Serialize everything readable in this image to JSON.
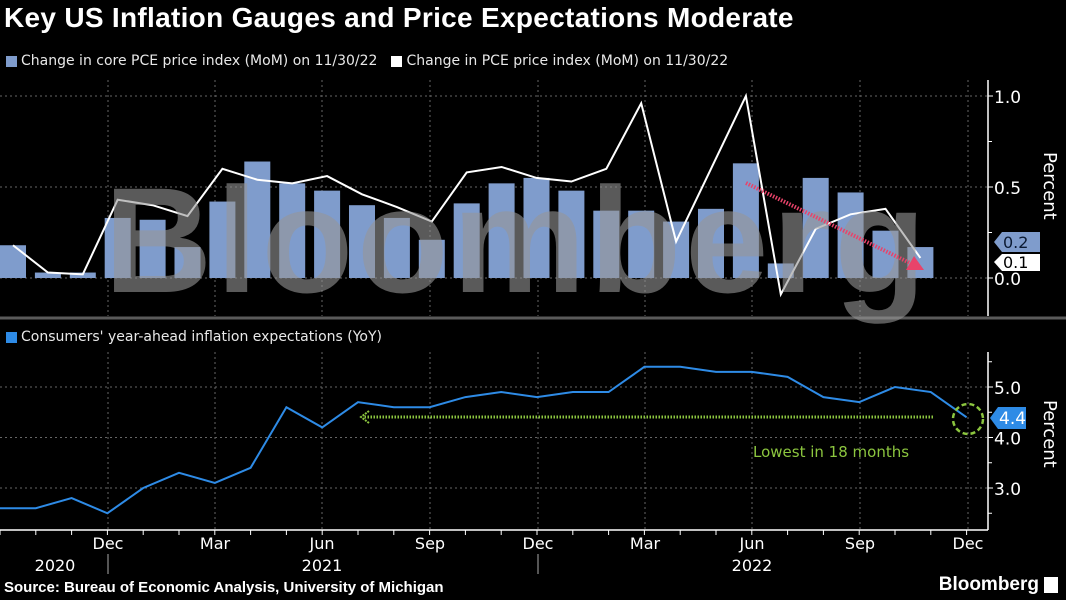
{
  "title": "Key US Inflation Gauges and Price Expectations Moderate",
  "source": "Source: Bureau of Economic Analysis, University of Michigan",
  "brand": "Bloomberg",
  "watermark": "Bloomberg",
  "colors": {
    "core_pce": "#7f9ccc",
    "pce": "#ffffff",
    "expectations": "#2e8be6",
    "annotation_green": "#8cc63f",
    "annotation_red": "#e8436a",
    "separator": "#5a5a5a"
  },
  "x_axis": {
    "month_labels": [
      "Dec",
      "Mar",
      "Jun",
      "Sep",
      "Dec",
      "Mar",
      "Jun",
      "Sep",
      "Dec"
    ],
    "year_labels": [
      "2020",
      "2021",
      "2022"
    ]
  },
  "chart_data": [
    {
      "type": "bar+line",
      "legend": [
        "Change in core PCE price index (MoM) on 11/30/22",
        "Change in PCE price index (MoM) on 11/30/22"
      ],
      "ylabel": "Percent",
      "yticks": [
        "1.0",
        "0.5",
        "0.0"
      ],
      "ylim": [
        -0.2,
        1.1
      ],
      "x": [
        "2020-09",
        "2020-10",
        "2020-11",
        "2020-12",
        "2021-01",
        "2021-02",
        "2021-03",
        "2021-04",
        "2021-05",
        "2021-06",
        "2021-07",
        "2021-08",
        "2021-09",
        "2021-10",
        "2021-11",
        "2021-12",
        "2022-01",
        "2022-02",
        "2022-03",
        "2022-04",
        "2022-05",
        "2022-06",
        "2022-07",
        "2022-08",
        "2022-09",
        "2022-10",
        "2022-11"
      ],
      "series": [
        {
          "name": "Change in core PCE price index (MoM) on 11/30/22",
          "kind": "bar",
          "values": [
            0.18,
            0.03,
            0.03,
            0.33,
            0.32,
            0.17,
            0.42,
            0.64,
            0.52,
            0.48,
            0.4,
            0.33,
            0.21,
            0.41,
            0.52,
            0.55,
            0.48,
            0.37,
            0.37,
            0.31,
            0.38,
            0.63,
            0.08,
            0.55,
            0.47,
            0.26,
            0.17
          ]
        },
        {
          "name": "Change in PCE price index (MoM) on 11/30/22",
          "kind": "line",
          "values": [
            0.18,
            0.03,
            0.02,
            0.43,
            0.4,
            0.34,
            0.6,
            0.54,
            0.52,
            0.56,
            0.46,
            0.39,
            0.31,
            0.58,
            0.61,
            0.55,
            0.53,
            0.6,
            0.96,
            0.2,
            0.6,
            1.0,
            -0.09,
            0.27,
            0.35,
            0.38,
            0.11
          ]
        }
      ],
      "end_labels": [
        "0.2",
        "0.1"
      ]
    },
    {
      "type": "line",
      "legend": [
        "Consumers' year-ahead inflation expectations (YoY)"
      ],
      "ylabel": "Percent",
      "yticks": [
        "5.0",
        "4.0",
        "3.0"
      ],
      "ylim": [
        2.2,
        5.7
      ],
      "x": [
        "2020-09",
        "2020-10",
        "2020-11",
        "2020-12",
        "2021-01",
        "2021-02",
        "2021-03",
        "2021-04",
        "2021-05",
        "2021-06",
        "2021-07",
        "2021-08",
        "2021-09",
        "2021-10",
        "2021-11",
        "2021-12",
        "2022-01",
        "2022-02",
        "2022-03",
        "2022-04",
        "2022-05",
        "2022-06",
        "2022-07",
        "2022-08",
        "2022-09",
        "2022-10",
        "2022-11",
        "2022-12"
      ],
      "series": [
        {
          "name": "Consumers' year-ahead inflation expectations (YoY)",
          "values": [
            2.6,
            2.6,
            2.8,
            2.5,
            3.0,
            3.3,
            3.1,
            3.4,
            4.6,
            4.2,
            4.7,
            4.6,
            4.6,
            4.8,
            4.9,
            4.8,
            4.9,
            4.9,
            5.4,
            5.4,
            5.3,
            5.3,
            5.2,
            4.8,
            4.7,
            5.0,
            4.9,
            4.4
          ]
        }
      ],
      "end_labels": [
        "4.4"
      ],
      "annotation": "Lowest in 18 months"
    }
  ]
}
